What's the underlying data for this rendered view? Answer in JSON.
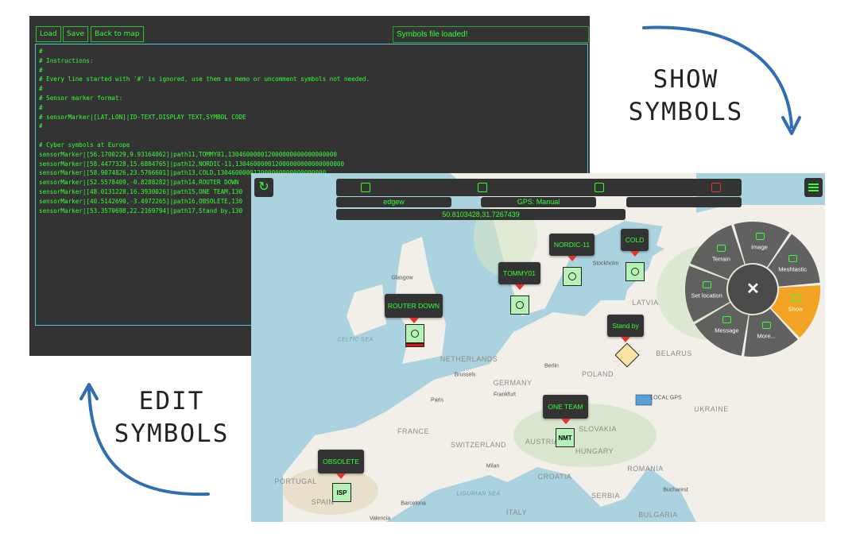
{
  "editor": {
    "buttons": [
      "Load",
      "Save",
      "Back to map"
    ],
    "status": "Symbols file loaded!",
    "instructions": [
      "#",
      "# Instructions:",
      "#",
      "# Every line started with '#' is ignored, use them as memo or uncomment symbols not needed.",
      "#",
      "# Sensor marker format:",
      "#",
      "# sensorMarker|[LAT,LON]|ID-TEXT,DISPLAY TEXT,SYMBOL CODE",
      "#"
    ],
    "symbols_heading": "# Cyber symbols at Europe",
    "symbols": [
      "sensorMarker|[56.1700229,9.93164062]|path11,TOMMY01,130460000012000000000000000000",
      "sensorMarker|[58.4477328,15.6884765]|path12,NORDIC-11,130460000012000000000000000000",
      "sensorMarker|[58.9074826,23.5766601]|path13,COLD,130460000012000000000000000000",
      "sensorMarker|[52.5578409,-0.8288282]|path14,ROUTER DOWN",
      "sensorMarker|[48.0131228,16.3930026]|path15,ONE TEAM,130",
      "sensorMarker|[40.5142690,-3.4972265]|path16,OBSOLETE,130",
      "sensorMarker|[53.3570698,22.2169794]|path17,Stand by,130"
    ]
  },
  "map": {
    "user": "edgew",
    "gps": "GPS: Manual",
    "coordinates": "50.8103428,31.7267439",
    "markers": [
      {
        "label": "ROUTER DOWN"
      },
      {
        "label": "TOMMY01"
      },
      {
        "label": "NORDIC-11"
      },
      {
        "label": "COLD"
      },
      {
        "label": "Stand by"
      },
      {
        "label": "ONE TEAM",
        "code": "NMT"
      },
      {
        "label": "OBSOLETE",
        "code": "ISP"
      }
    ],
    "places": [
      "Glasgow",
      "CELTIC SEA",
      "NETHERLANDS",
      "GERMANY",
      "POLAND",
      "FRANCE",
      "SWITZERLAND",
      "AUSTRIA",
      "SLOVAKIA",
      "HUNGARY",
      "ROMANIA",
      "CROATIA",
      "SERBIA",
      "ITALY",
      "PORTUGAL",
      "SPAIN",
      "BELARUS",
      "UKRAINE",
      "LATVIA",
      "Paris",
      "Berlin",
      "Brussels",
      "Frankfurt",
      "Milan",
      "Barcelona",
      "Bucharest",
      "Stockholm",
      "Valencia",
      "LIGURIAN SEA",
      "BULGARIA",
      "LOCAL GPS"
    ],
    "menu": [
      "Terrain",
      "Image",
      "Meshtastic",
      "Show",
      "More...",
      "Message",
      "Set location"
    ]
  },
  "annotations": {
    "show": [
      "SHOW",
      "SYMBOLS"
    ],
    "edit": [
      "EDIT",
      "SYMBOLS"
    ]
  }
}
